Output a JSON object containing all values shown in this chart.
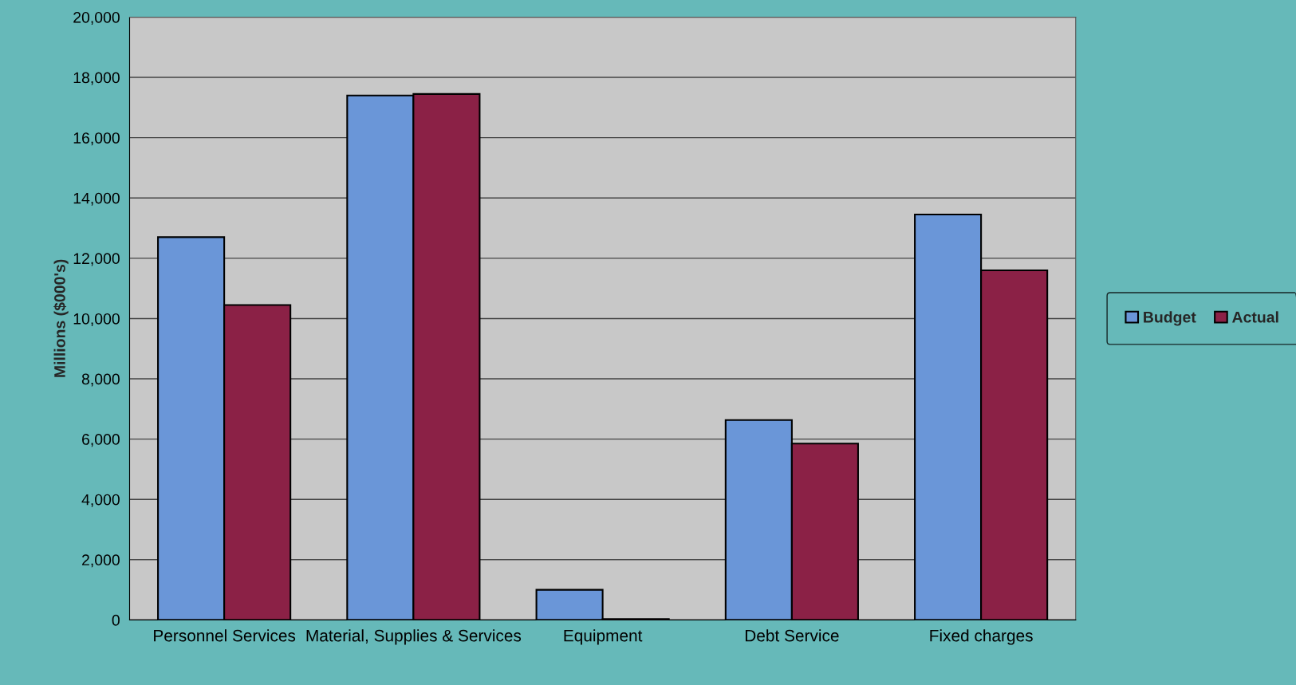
{
  "chart_data": {
    "type": "bar",
    "ylabel": "Millions ($000's)",
    "categories": [
      "Personnel Services",
      "Material, Supplies & Services",
      "Equipment",
      "Debt Service",
      "Fixed charges"
    ],
    "series": [
      {
        "name": "Budget",
        "color": "#6a96d8",
        "values": [
          12700,
          17400,
          1000,
          6630,
          13450
        ]
      },
      {
        "name": "Actual",
        "color": "#8b2146",
        "values": [
          10450,
          17450,
          30,
          5850,
          11600
        ]
      }
    ],
    "ylim": [
      0,
      20000
    ],
    "yticks": [
      {
        "value": 0,
        "label": "0"
      },
      {
        "value": 2000,
        "label": "2,000"
      },
      {
        "value": 4000,
        "label": "4,000"
      },
      {
        "value": 6000,
        "label": "6,000"
      },
      {
        "value": 8000,
        "label": "8,000"
      },
      {
        "value": 10000,
        "label": "10,000"
      },
      {
        "value": 12000,
        "label": "12,000"
      },
      {
        "value": 14000,
        "label": "14,000"
      },
      {
        "value": 16000,
        "label": "16,000"
      },
      {
        "value": 18000,
        "label": "18,000"
      },
      {
        "value": 20000,
        "label": "20,000"
      }
    ],
    "grid": "y",
    "legend": "right"
  }
}
